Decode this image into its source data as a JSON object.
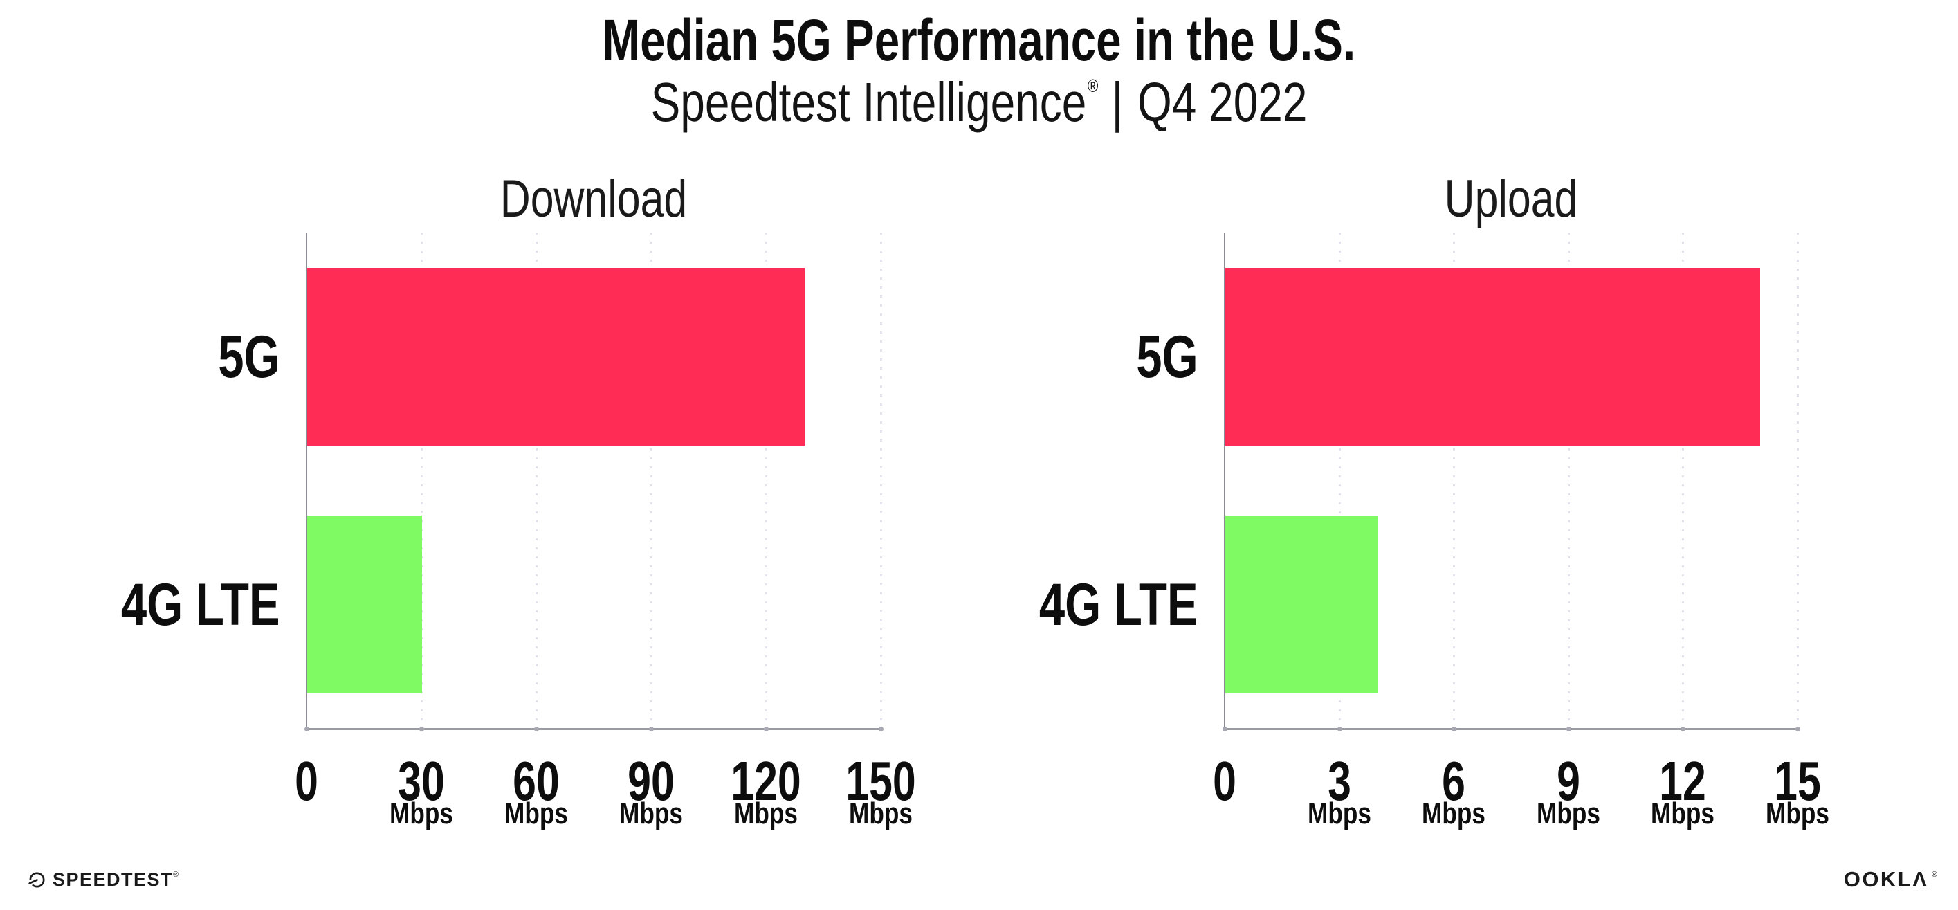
{
  "header": {
    "title": "Median 5G Performance in the U.S.",
    "subtitle_brand": "Speedtest Intelligence",
    "subtitle_reg": "®",
    "subtitle_separator": "|",
    "subtitle_period": "Q4 2022"
  },
  "chart_data": {
    "type": "bar",
    "orientation": "horizontal",
    "grid": "dotted-vertical",
    "legend": "none",
    "series_colors": {
      "5G": "#FF2D56",
      "4G LTE": "#80FA62"
    },
    "charts": [
      {
        "title": "Download",
        "categories": [
          "5G",
          "4G LTE"
        ],
        "values": [
          130,
          30
        ],
        "unit": "Mbps",
        "xlim": [
          0,
          150
        ],
        "ticks": [
          0,
          30,
          60,
          90,
          120,
          150
        ]
      },
      {
        "title": "Upload",
        "categories": [
          "5G",
          "4G LTE"
        ],
        "values": [
          14,
          4
        ],
        "unit": "Mbps",
        "xlim": [
          0,
          15
        ],
        "ticks": [
          0,
          3,
          6,
          9,
          12,
          15
        ]
      }
    ]
  },
  "footer": {
    "speedtest_text": "SPEEDTEST",
    "speedtest_reg": "®",
    "ookla_text": "OOKLΛ",
    "ookla_reg": "®"
  }
}
